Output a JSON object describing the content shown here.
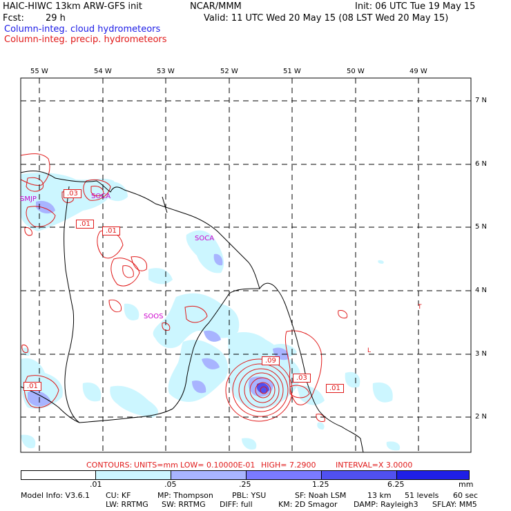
{
  "header": {
    "title": "HAIC-HIWC 13km ARW-GFS init",
    "org": "NCAR/MMM",
    "init": "Init: 06 UTC Tue 19 May 15",
    "fcst_label": "Fcst:",
    "fcst_value": "29 h",
    "valid": "Valid: 11 UTC Wed 20 May 15 (08 LST Wed 20 May 15)",
    "legend_cloud": "Column-integ. cloud hydrometeors",
    "legend_precip": "Column-integ. precip. hydrometeors"
  },
  "map": {
    "lon_labels": [
      "55 W",
      "54 W",
      "53 W",
      "52 W",
      "51 W",
      "50 W",
      "49 W"
    ],
    "lat_labels": [
      "7 N",
      "6 N",
      "5 N",
      "4 N",
      "3 N",
      "2 N"
    ],
    "stations": [
      "SMJP",
      "SOCA",
      "SOCA",
      "SOOS"
    ],
    "contour_labels": [
      ".03",
      ".01",
      ".01",
      ".09",
      ".03",
      ".01",
      ".01"
    ],
    "marks": [
      "T",
      "L"
    ]
  },
  "contour_info": {
    "contours": "CONTOURS:",
    "units": "UNITS=mm",
    "low": "LOW= 0.10000E-01",
    "high": "HIGH=  7.2900",
    "interval": "INTERVAL=X  3.0000"
  },
  "colorbar": {
    "ticks": [
      ".01",
      ".05",
      ".25",
      "1.25",
      "6.25"
    ],
    "unit": "mm",
    "colors": [
      "#ffffff",
      "#ccf6ff",
      "#a8b4ff",
      "#7a7aff",
      "#5050f0",
      "#1f1fe6"
    ]
  },
  "footer": {
    "model_info": "Model Info: V3.6.1",
    "cu": "CU: KF",
    "mp": "MP: Thompson",
    "pbl": "PBL: YSU",
    "sf": "SF: Noah LSM",
    "res": "13 km",
    "levels": "51 levels",
    "dt": "60 sec",
    "lw": "LW: RRTMG",
    "sw": "SW: RRTMG",
    "diff": "DIFF: full",
    "km": "KM: 2D Smagor",
    "damp": "DAMP: Rayleigh3",
    "sflay": "SFLAY: MM5"
  }
}
